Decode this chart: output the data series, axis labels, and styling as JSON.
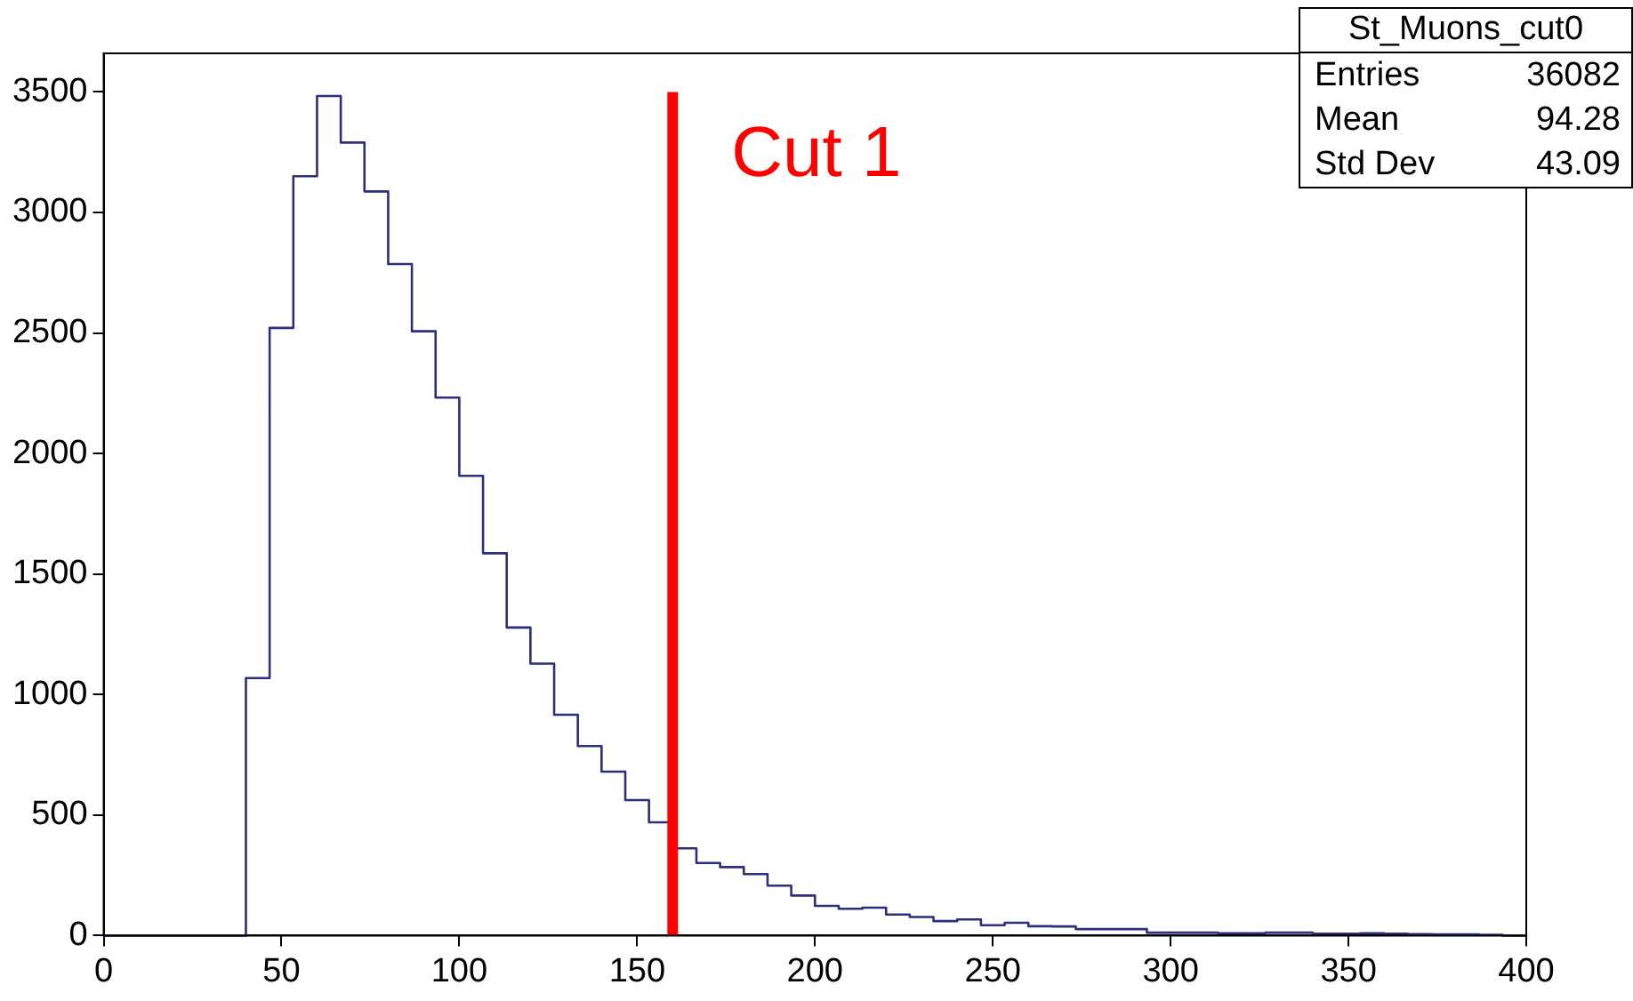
{
  "chart_data": {
    "type": "histogram",
    "bins": [
      0,
      6.67,
      13.33,
      20,
      26.67,
      33.33,
      40,
      46.67,
      53.33,
      60,
      66.67,
      73.33,
      80,
      86.67,
      93.33,
      100,
      106.67,
      113.33,
      120,
      126.67,
      133.33,
      140,
      146.67,
      153.33,
      160,
      166.67,
      173.33,
      180,
      186.67,
      193.33,
      200,
      206.67,
      213.33,
      220,
      226.67,
      233.33,
      240,
      246.67,
      253.33,
      260,
      266.67,
      273.33,
      280,
      286.67,
      293.33,
      300,
      306.67,
      313.33,
      320,
      326.67,
      333.33,
      340,
      346.67,
      353.33,
      360,
      366.67,
      373.33,
      380,
      386.67,
      393.33,
      400
    ],
    "values": [
      0,
      0,
      0,
      0,
      0,
      0,
      1068,
      2521,
      3150,
      3483,
      3290,
      3087,
      2786,
      2507,
      2232,
      1907,
      1586,
      1278,
      1128,
      916,
      786,
      680,
      562,
      470,
      362,
      301,
      284,
      255,
      207,
      166,
      123,
      111,
      116,
      87,
      77,
      60,
      67,
      43,
      53,
      39,
      38,
      27,
      27,
      27,
      12,
      12,
      12,
      10,
      10,
      12,
      12,
      8,
      8,
      10,
      8,
      6,
      5,
      5,
      3,
      0
    ],
    "color": "#2e2e7a",
    "xlim": [
      0,
      400
    ],
    "xticks": [
      0,
      50,
      100,
      150,
      200,
      250,
      300,
      350,
      400
    ],
    "ylim": [
      0,
      3660
    ],
    "yticks": [
      0,
      500,
      1000,
      1500,
      2000,
      2500,
      3000,
      3500
    ],
    "grid": false,
    "legend": false,
    "ref_lines": [
      {
        "axis": "x",
        "value": 160,
        "label": "Cut 1",
        "color": "#ff0000"
      }
    ],
    "annotations": [
      "St_Muons_cut0",
      "Entries",
      "36082",
      "Mean",
      "94.28",
      "Std Dev",
      "43.09"
    ]
  }
}
